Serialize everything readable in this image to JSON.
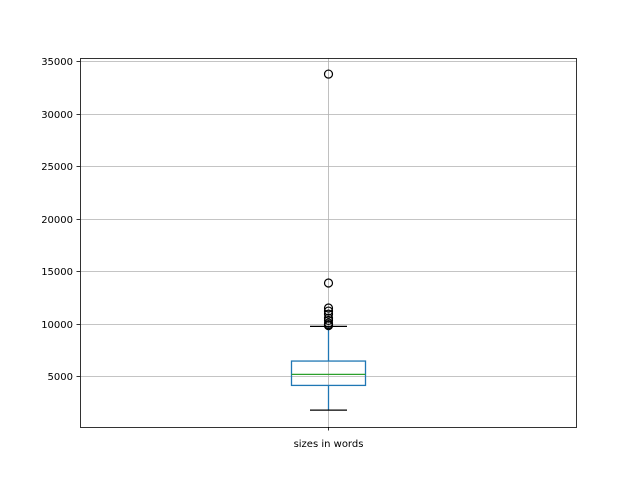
{
  "chart_data": {
    "type": "box",
    "title": "",
    "xlabel": "",
    "ylabel": "",
    "categories": [
      "sizes in words"
    ],
    "ylim": [
      150,
      35290
    ],
    "yticks": [
      5000,
      10000,
      15000,
      20000,
      25000,
      30000,
      35000
    ],
    "ytick_labels": [
      "5000",
      "10000",
      "15000",
      "20000",
      "25000",
      "30000",
      "35000"
    ],
    "grid": true,
    "boxes": [
      {
        "name": "sizes in words",
        "whisker_low": 1760,
        "q1": 4110,
        "median": 5160,
        "q3": 6430,
        "whisker_high": 9730,
        "outliers": [
          9800,
          9900,
          10050,
          10300,
          10520,
          10900,
          11190,
          11480,
          13860,
          33760
        ]
      }
    ],
    "colors": {
      "box": "#1f77b4",
      "median": "#2ca02c",
      "whisker_cap": "#000000",
      "grid": "#b0b0b0"
    }
  }
}
